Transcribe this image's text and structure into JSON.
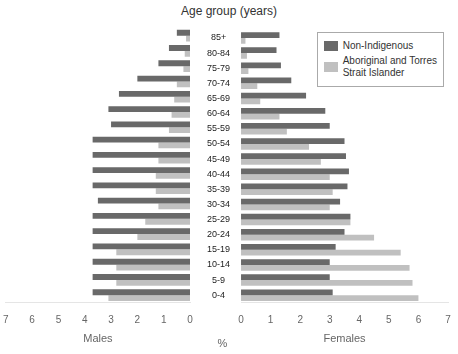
{
  "chart_data": [
    {
      "type": "bar",
      "orientation": "horizontal",
      "title": "Age group (years)",
      "xlabel": "Males",
      "categories": [
        "0-4",
        "5-9",
        "10-14",
        "15-19",
        "20-24",
        "25-29",
        "30-34",
        "35-39",
        "40-44",
        "45-49",
        "50-54",
        "55-59",
        "60-64",
        "65-69",
        "70-74",
        "75-79",
        "80-84",
        "85+"
      ],
      "series": [
        {
          "color": "#696969",
          "values": [
            3.7,
            3.7,
            3.7,
            3.7,
            3.7,
            3.7,
            3.5,
            3.7,
            3.7,
            3.7,
            3.7,
            3.0,
            3.1,
            2.7,
            2.0,
            1.2,
            0.8,
            0.5
          ]
        },
        {
          "color": "#c0c0c0",
          "values": [
            3.1,
            2.8,
            2.8,
            2.8,
            2.0,
            1.7,
            1.2,
            1.3,
            1.3,
            1.2,
            1.2,
            0.8,
            0.7,
            0.6,
            0.5,
            0.25,
            0.2,
            0.15
          ]
        }
      ],
      "xlim": [
        7,
        0
      ],
      "xticks": [
        7,
        6,
        5,
        4,
        3,
        2,
        1,
        0
      ],
      "grid": false,
      "tick_labels": "x"
    },
    {
      "type": "bar",
      "orientation": "horizontal",
      "xlabel": "Females",
      "annotations": [
        "%"
      ],
      "categories": [
        "0-4",
        "5-9",
        "10-14",
        "15-19",
        "20-24",
        "25-29",
        "30-34",
        "35-39",
        "40-44",
        "45-49",
        "50-54",
        "55-59",
        "60-64",
        "65-69",
        "70-74",
        "75-79",
        "80-84",
        "85+"
      ],
      "series": [
        {
          "name": "Non-Indigenous",
          "color": "#696969",
          "values": [
            3.1,
            3.0,
            3.0,
            3.2,
            3.5,
            3.7,
            3.35,
            3.6,
            3.65,
            3.55,
            3.5,
            3.0,
            2.85,
            2.2,
            1.7,
            1.35,
            1.2,
            1.3
          ]
        },
        {
          "name": "Aboriginal and Torres\nStrait Islander",
          "color": "#c0c0c0",
          "values": [
            6.0,
            5.8,
            5.7,
            5.4,
            4.5,
            3.7,
            3.0,
            3.1,
            3.0,
            2.7,
            2.3,
            1.55,
            1.3,
            0.65,
            0.55,
            0.25,
            0.2,
            0.15
          ]
        }
      ],
      "xlim": [
        0,
        7
      ],
      "xticks": [
        0,
        1,
        2,
        3,
        4,
        5,
        6,
        7
      ],
      "grid": false,
      "legend": "upper right"
    }
  ]
}
